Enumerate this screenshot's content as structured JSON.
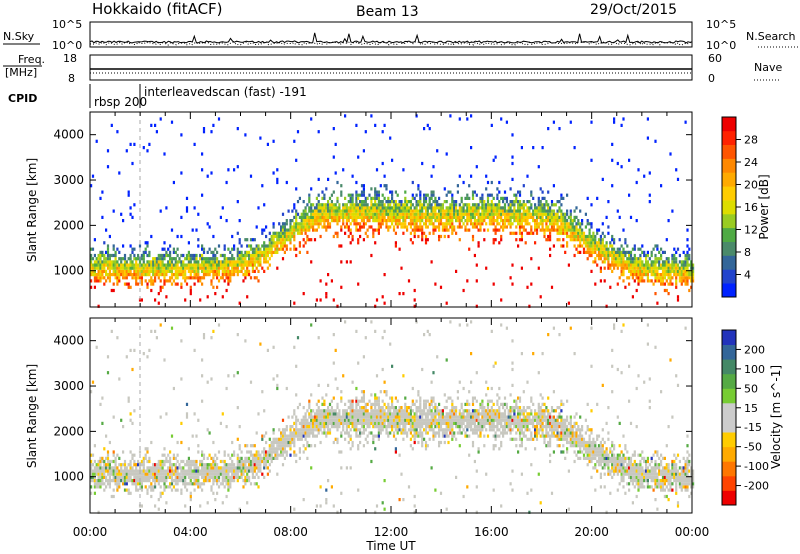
{
  "header": {
    "station": "Hokkaido (fitACF)",
    "beam": "Beam 13",
    "date": "29/Oct/2015"
  },
  "strip": {
    "nsky_label": "N.Sky",
    "nsearch_label": "N.Search",
    "noise_tick_top": "10^5",
    "noise_tick_bottom": "10^0",
    "freq_label": "Freq.",
    "freq_unit": "[MHz]",
    "freq_tick_top": "18",
    "freq_tick_bottom": "8",
    "nave_label": "Nave",
    "nave_tick_top": "60",
    "nave_tick_bottom": "0",
    "cpid_label": "CPID",
    "cpid_1": "rbsp 200",
    "cpid_2": "interleavedscan (fast) -191"
  },
  "axes": {
    "y_label": "Slant Range [km]",
    "y_ticks": [
      "1000",
      "2000",
      "3000",
      "4000"
    ],
    "x_label": "Time UT",
    "x_ticks": [
      "00:00",
      "04:00",
      "08:00",
      "12:00",
      "16:00",
      "20:00",
      "00:00"
    ]
  },
  "colorbars": {
    "power": {
      "label": "Power [dB]",
      "ticks": [
        "4",
        "8",
        "12",
        "16",
        "20",
        "24",
        "28"
      ],
      "colors": [
        "#0022ff",
        "#2244cc",
        "#336699",
        "#4a8a6a",
        "#4faa44",
        "#99cc22",
        "#dddd00",
        "#ffcc00",
        "#ffaa00",
        "#ff8800",
        "#ff5500",
        "#ff2200",
        "#ee0000"
      ]
    },
    "velocity": {
      "label": "Velocity [m s^-1]",
      "ticks": [
        "200",
        "100",
        "50",
        "15",
        "-15",
        "-50",
        "-100",
        "-200"
      ],
      "colors": [
        "#2233bb",
        "#336699",
        "#448866",
        "#55aa44",
        "#77cc33",
        "#cccccc",
        "#cccccc",
        "#ffcc00",
        "#ffaa00",
        "#ff7700",
        "#ff4400",
        "#ee0000"
      ]
    }
  },
  "chart_data": [
    {
      "type": "heatmap",
      "panel": "power",
      "x_unit": "hours UT",
      "xlim": [
        0,
        24
      ],
      "ylim": [
        200,
        4500
      ],
      "echo_band_center_km": {
        "x": [
          0,
          2,
          4,
          6,
          7,
          8,
          9,
          10,
          11,
          12,
          14,
          16,
          18,
          19,
          20,
          21,
          22,
          23,
          24
        ],
        "y": [
          1150,
          1100,
          1100,
          1200,
          1450,
          1900,
          2250,
          2350,
          2350,
          2300,
          2250,
          2300,
          2250,
          2050,
          1600,
          1300,
          1100,
          1050,
          1000
        ]
      },
      "noise_fraction": 0.02
    },
    {
      "type": "heatmap",
      "panel": "velocity",
      "x_unit": "hours UT",
      "xlim": [
        0,
        24
      ],
      "ylim": [
        200,
        4500
      ],
      "echo_band_center_km": {
        "x": [
          0,
          2,
          4,
          6,
          7,
          8,
          9,
          10,
          11,
          12,
          14,
          16,
          18,
          19,
          20,
          21,
          22,
          23,
          24
        ],
        "y": [
          1150,
          1100,
          1100,
          1200,
          1450,
          1900,
          2250,
          2350,
          2350,
          2300,
          2250,
          2300,
          2250,
          2050,
          1600,
          1300,
          1100,
          1050,
          1000
        ]
      },
      "dominant_velocity": "-15 to 15 (ground scatter)"
    }
  ]
}
